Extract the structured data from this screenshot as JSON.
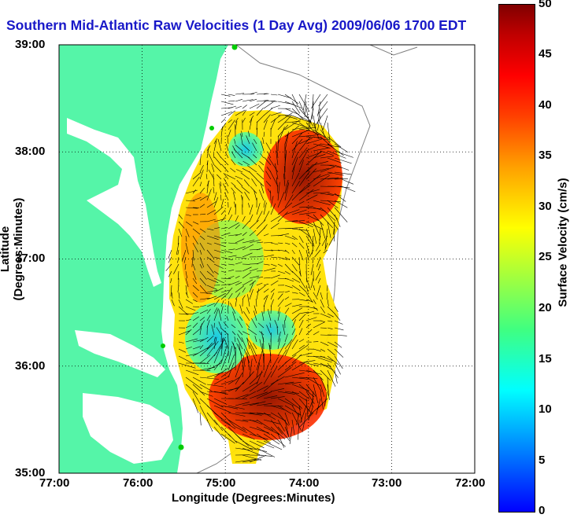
{
  "title": "Southern Mid-Atlantic Raw Velocities (1 Day Avg) 2009/06/06 1700 EDT",
  "map": {
    "x_ticks": [
      "77:00",
      "76:00",
      "75:00",
      "74:00",
      "73:00",
      "72:00"
    ],
    "y_ticks": [
      "39:00",
      "38:00",
      "37:00",
      "36:00",
      "35:00"
    ],
    "xlabel": "Longitude (Degrees:Minutes)",
    "ylabel": "Latitude (Degrees:Minutes)",
    "land_color": "#55f5a8",
    "grid": "dotted"
  },
  "colorbar": {
    "label": "Surface Velocity (cm/s)",
    "ticks": [
      "50",
      "45",
      "40",
      "35",
      "30",
      "25",
      "20",
      "15",
      "10",
      "5",
      "0"
    ],
    "range": [
      0,
      50
    ]
  }
}
